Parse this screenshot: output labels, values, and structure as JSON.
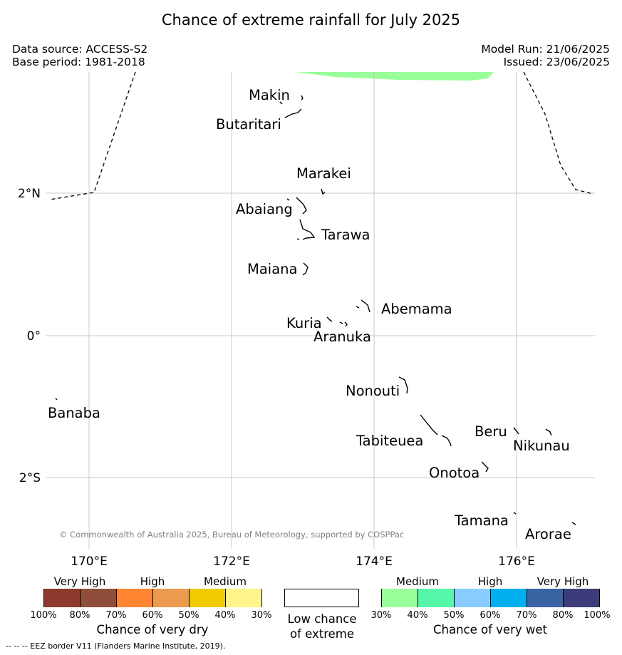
{
  "title": "Chance of extreme rainfall for July 2025",
  "data_source": "Data source: ACCESS-S2",
  "base_period": "Base period: 1981-2018",
  "model_run": "Model Run: 21/06/2025",
  "issued": "Issued: 23/06/2025",
  "map": {
    "lat_labels": [
      "2°N",
      "0°",
      "2°S"
    ],
    "lon_labels": [
      "170°E",
      "172°E",
      "174°E",
      "176°E"
    ],
    "places": [
      "Makin",
      "Butaritari",
      "Marakei",
      "Abaiang",
      "Tarawa",
      "Maiana",
      "Abemama",
      "Kuria",
      "Aranuka",
      "Nonouti",
      "Banaba",
      "Tabiteuea",
      "Beru",
      "Nikunau",
      "Onotoa",
      "Tamana",
      "Arorae"
    ],
    "copyright": "© Commonwealth of Australia 2025, Bureau of Meteorology, supported by COSPPac",
    "wet_area_color": "#9aff9a",
    "eez_line_style": "dashed"
  },
  "legend": {
    "dry": {
      "categories": [
        "Very High",
        "High",
        "Medium"
      ],
      "colors": [
        "#8c3a2e",
        "#8e4e3a",
        "#ff8533",
        "#eb9a50",
        "#f0cb00",
        "#fff58a"
      ],
      "ticks": [
        "100%",
        "80%",
        "70%",
        "60%",
        "50%",
        "40%",
        "30%"
      ],
      "caption": "Chance of very dry"
    },
    "low": {
      "color": "#ffffff",
      "caption_line1": "Low chance",
      "caption_line2": "of extreme"
    },
    "wet": {
      "categories": [
        "Medium",
        "High",
        "Very High"
      ],
      "colors": [
        "#9aff9a",
        "#55f7a8",
        "#88ccff",
        "#00b0ee",
        "#3a64a4",
        "#3c3c7a"
      ],
      "ticks": [
        "30%",
        "40%",
        "50%",
        "60%",
        "70%",
        "80%",
        "100%"
      ],
      "caption": "Chance of very wet"
    }
  },
  "footer": "--  --  -- EEZ border V11 (Flanders Marine Institute, 2019)."
}
